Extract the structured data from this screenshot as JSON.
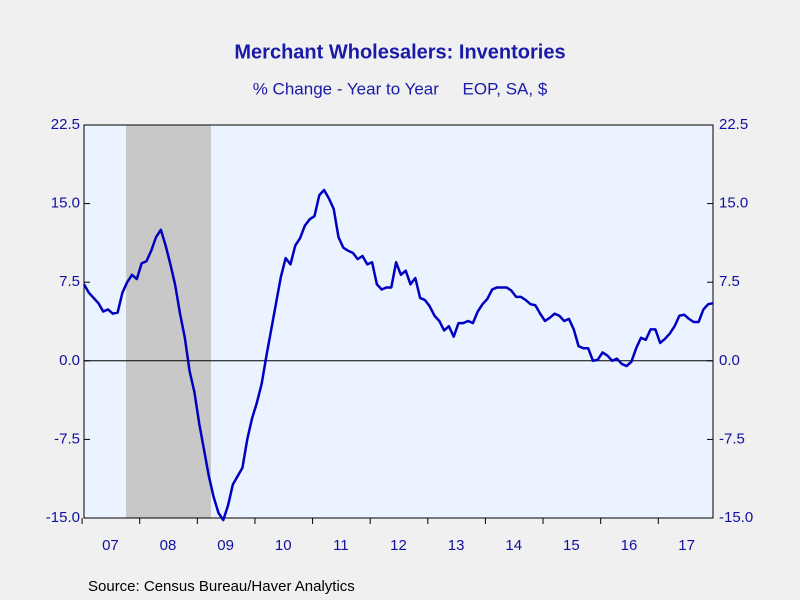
{
  "chart_data": {
    "type": "line",
    "title": "Merchant Wholesalers: Inventories",
    "subtitle": "% Change - Year to Year     EOP, SA, $",
    "source": "Source:  Census Bureau/Haver Analytics",
    "categories": [
      null,
      null,
      null,
      null,
      null,
      null,
      "07",
      null,
      null,
      null,
      null,
      null,
      null,
      null,
      null,
      null,
      null,
      null,
      "08",
      null,
      null,
      null,
      null,
      null,
      null,
      null,
      null,
      null,
      null,
      null,
      "09",
      null,
      null,
      null,
      null,
      null,
      null,
      null,
      null,
      null,
      null,
      null,
      "10",
      null,
      null,
      null,
      null,
      null,
      null,
      null,
      null,
      null,
      null,
      null,
      "11",
      null,
      null,
      null,
      null,
      null,
      null,
      null,
      null,
      null,
      null,
      null,
      "12",
      null,
      null,
      null,
      null,
      null,
      null,
      null,
      null,
      null,
      null,
      null,
      "13",
      null,
      null,
      null,
      null,
      null,
      null,
      null,
      null,
      null,
      null,
      null,
      "14",
      null,
      null,
      null,
      null,
      null,
      null,
      null,
      null,
      null,
      null,
      null,
      "15",
      null,
      null,
      null,
      null,
      null,
      null,
      null,
      null,
      null,
      null,
      null,
      "16",
      null,
      null,
      null,
      null,
      null,
      null,
      null,
      null,
      null,
      null,
      null,
      "17",
      null,
      null,
      null,
      null,
      null
    ],
    "series": [
      {
        "name": "Merchant Wholesalers: Inventories",
        "color": "#0000c0",
        "values": [
          7.3,
          6.5,
          6.0,
          5.5,
          4.7,
          4.9,
          4.5,
          4.6,
          6.5,
          7.5,
          8.2,
          7.8,
          9.3,
          9.5,
          10.5,
          11.8,
          12.5,
          11.0,
          9.2,
          7.2,
          4.5,
          2.2,
          -1.0,
          -3.0,
          -6.0,
          -8.5,
          -11.0,
          -13.0,
          -14.5,
          -15.2,
          -13.8,
          -11.8,
          -11.0,
          -10.2,
          -7.5,
          -5.5,
          -4.0,
          -2.2,
          0.5,
          3.0,
          5.5,
          8.0,
          9.8,
          9.2,
          11.0,
          11.7,
          12.9,
          13.5,
          13.8,
          15.8,
          16.3,
          15.5,
          14.5,
          11.8,
          10.8,
          10.5,
          10.3,
          9.7,
          10.0,
          9.2,
          9.4,
          7.3,
          6.8,
          7.0,
          7.0,
          9.4,
          8.2,
          8.6,
          7.3,
          7.9,
          6.0,
          5.8,
          5.2,
          4.3,
          3.8,
          2.9,
          3.3,
          2.3,
          3.6,
          3.6,
          3.8,
          3.6,
          4.7,
          5.4,
          5.9,
          6.8,
          7.0,
          7.0,
          7.0,
          6.7,
          6.1,
          6.1,
          5.8,
          5.4,
          5.3,
          4.5,
          3.8,
          4.1,
          4.5,
          4.3,
          3.8,
          4.0,
          3.0,
          1.4,
          1.2,
          1.2,
          0.0,
          0.1,
          0.8,
          0.5,
          0.0,
          0.2,
          -0.3,
          -0.5,
          -0.1,
          1.2,
          2.2,
          2.0,
          3.0,
          3.0,
          1.7,
          2.1,
          2.6,
          3.3,
          4.3,
          4.4,
          4.0,
          3.7,
          3.7,
          4.9,
          5.4,
          5.5
        ]
      }
    ],
    "ylim": [
      -15,
      22.5
    ],
    "yticks": [
      {
        "value": -15,
        "label": "-15.0"
      },
      -7.5,
      {
        "value": 0,
        "label": "0.0"
      },
      7.5,
      {
        "value": 15,
        "label": "15.0"
      },
      22.5
    ],
    "y2lim": [
      -15,
      22.5
    ],
    "y2ticks": [
      {
        "value": -15,
        "label": "-15.0"
      },
      -7.5,
      {
        "value": 0,
        "label": "0.0"
      },
      7.5,
      {
        "value": 15,
        "label": "15.0"
      },
      22.5
    ]
  }
}
